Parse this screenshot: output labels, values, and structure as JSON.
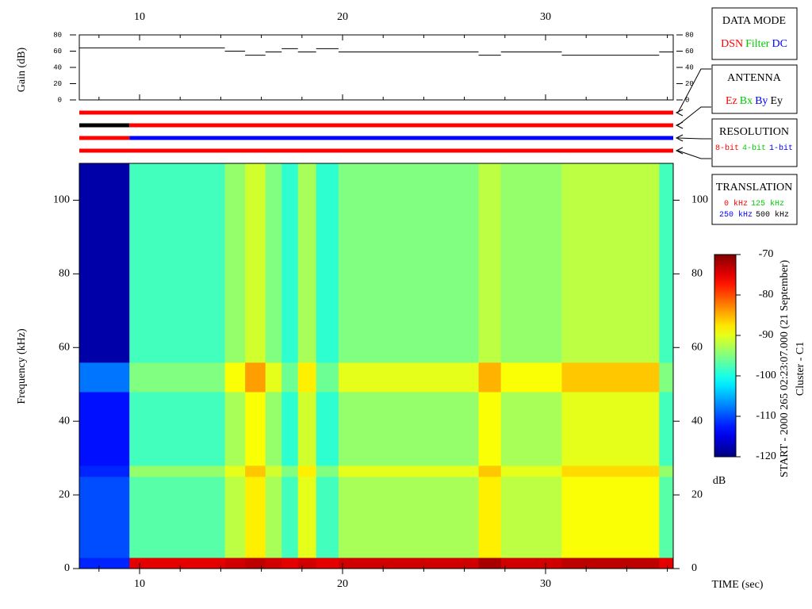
{
  "chart_data": [
    {
      "type": "step",
      "y_label": "Gain (dB)",
      "xlim": [
        7.03,
        36.29
      ],
      "xticks": [
        10,
        20,
        30
      ],
      "xminor": [
        8,
        12,
        14,
        16,
        18,
        22,
        24,
        26,
        28,
        32,
        34,
        36
      ],
      "ylim": [
        0,
        80
      ],
      "yticks": [
        0,
        20,
        40,
        60,
        80
      ],
      "color": "#000000",
      "x": [
        7.03,
        14.2,
        15.2,
        16.2,
        17.0,
        17.8,
        18.7,
        19.8,
        26.7,
        27.8,
        30.8,
        35.6
      ],
      "values": [
        64,
        60,
        55,
        59,
        63,
        59,
        63,
        59,
        55,
        59,
        55,
        59
      ]
    },
    {
      "type": "status",
      "xlim": [
        7.03,
        36.29
      ],
      "rows": [
        {
          "segments": [
            {
              "start": 7.03,
              "end": 36.29,
              "color": "#ff0000"
            }
          ]
        },
        {
          "segments": [
            {
              "start": 7.03,
              "end": 9.5,
              "color": "#000000"
            },
            {
              "start": 9.5,
              "end": 36.29,
              "color": "#ff0000"
            }
          ]
        },
        {
          "segments": [
            {
              "start": 7.03,
              "end": 9.5,
              "color": "#ff0000"
            },
            {
              "start": 9.5,
              "end": 36.29,
              "color": "#0000ff"
            }
          ]
        },
        {
          "segments": [
            {
              "start": 7.03,
              "end": 36.29,
              "color": "#ff0000"
            }
          ]
        }
      ]
    },
    {
      "type": "heatmap",
      "x_label": "TIME (sec)",
      "y_label": "Frequency (kHz)",
      "xlim": [
        7.03,
        36.29
      ],
      "xticks": [
        10,
        20,
        30
      ],
      "xminor": [
        8,
        12,
        14,
        16,
        18,
        22,
        24,
        26,
        28,
        32,
        34,
        36
      ],
      "ylim": [
        0,
        110
      ],
      "yticks": [
        0,
        20,
        40,
        60,
        80,
        100
      ],
      "x_edges": [
        7.03,
        9.5,
        14.2,
        15.2,
        16.2,
        17.0,
        17.8,
        18.7,
        19.8,
        26.7,
        27.8,
        30.8,
        35.6,
        36.29
      ],
      "y_edges": [
        0,
        3,
        25,
        28,
        48,
        56,
        110
      ],
      "values": [
        [
          -112,
          -75,
          -74,
          -73,
          -74,
          -75,
          -74,
          -75,
          -74,
          -72,
          -74,
          -73,
          -75
        ],
        [
          -110,
          -97,
          -92,
          -88,
          -93,
          -98,
          -90,
          -98,
          -93,
          -88,
          -92,
          -89,
          -97
        ],
        [
          -112,
          -94,
          -90,
          -86,
          -91,
          -95,
          -88,
          -95,
          -90,
          -86,
          -90,
          -87,
          -94
        ],
        [
          -113,
          -98,
          -93,
          -89,
          -94,
          -99,
          -91,
          -99,
          -94,
          -89,
          -93,
          -90,
          -98
        ],
        [
          -108,
          -95,
          -89,
          -84,
          -90,
          -96,
          -88,
          -96,
          -90,
          -85,
          -89,
          -86,
          -95
        ],
        [
          -118,
          -98,
          -94,
          -91,
          -95,
          -99,
          -93,
          -99,
          -95,
          -92,
          -94,
          -92,
          -98
        ]
      ],
      "zlim": [
        -120,
        -70
      ],
      "zticks": [
        -120,
        -110,
        -100,
        -90,
        -80,
        -70
      ],
      "z_label": "dB"
    }
  ],
  "legend_boxes": [
    {
      "title": "DATA MODE",
      "lines": [
        [
          {
            "text": "DSN",
            "color": "#ff0000"
          },
          {
            "text": "Filter",
            "color": "#00cc00"
          },
          {
            "text": "DC",
            "color": "#0000ff"
          }
        ]
      ]
    },
    {
      "title": "ANTENNA",
      "lines": [
        [
          {
            "text": "Ez",
            "color": "#ff0000"
          },
          {
            "text": "Bx",
            "color": "#00cc00"
          },
          {
            "text": "By",
            "color": "#0000ff"
          },
          {
            "text": "Ey",
            "color": "#000000"
          }
        ]
      ]
    },
    {
      "title": "RESOLUTION",
      "lines": [
        [
          {
            "text": "8-bit",
            "color": "#ff0000"
          },
          {
            "text": "4-bit",
            "color": "#00cc00"
          },
          {
            "text": "1-bit",
            "color": "#0000ff"
          }
        ]
      ]
    },
    {
      "title": "TRANSLATION",
      "lines": [
        [
          {
            "text": "0 kHz",
            "color": "#ff0000"
          },
          {
            "text": "125 kHz",
            "color": "#00cc00"
          }
        ],
        [
          {
            "text": "250 kHz",
            "color": "#0000ff"
          },
          {
            "text": "500 kHz",
            "color": "#000000"
          }
        ]
      ]
    }
  ],
  "start_label": "START - 2000 265 02:23:07.000 (21 September)",
  "mission": "Cluster - C1"
}
